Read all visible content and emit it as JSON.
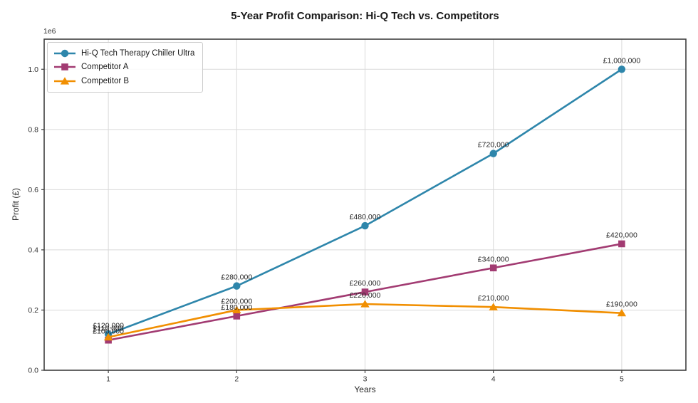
{
  "chart_data": {
    "type": "line",
    "title": "5-Year Profit Comparison: Hi-Q Tech vs. Competitors",
    "xlabel": "Years",
    "ylabel": "Profit (£)",
    "y_axis_multiplier_label": "1e6",
    "x": [
      1,
      2,
      3,
      4,
      5
    ],
    "x_tick_labels": [
      "1",
      "2",
      "3",
      "4",
      "5"
    ],
    "y_ticks": [
      0,
      200000,
      400000,
      600000,
      800000,
      1000000
    ],
    "y_tick_labels": [
      "0.0",
      "0.2",
      "0.4",
      "0.6",
      "0.8",
      "1.0"
    ],
    "xlim": [
      0.5,
      5.5
    ],
    "ylim": [
      0,
      1100000
    ],
    "grid": true,
    "legend_position": "upper left",
    "colors": {
      "grid": "#d9d9d9",
      "spine": "#3f3f3f",
      "tick_text": "#333333",
      "annotation_text": "#262626",
      "background": "#ffffff"
    },
    "series": [
      {
        "name": "Hi-Q Tech Therapy Chiller Ultra",
        "color": "#2E86AB",
        "marker": "circle",
        "values": [
          120000,
          280000,
          480000,
          720000,
          1000000
        ],
        "point_labels": [
          "£120,000",
          "£280,000",
          "£480,000",
          "£720,000",
          "£1,000,000"
        ]
      },
      {
        "name": "Competitor A",
        "color": "#A23B72",
        "marker": "square",
        "values": [
          100000,
          180000,
          260000,
          340000,
          420000
        ],
        "point_labels": [
          "£100,000",
          "£180,000",
          "£260,000",
          "£340,000",
          "£420,000"
        ]
      },
      {
        "name": "Competitor B",
        "color": "#F18F01",
        "marker": "triangle",
        "values": [
          110000,
          200000,
          220000,
          210000,
          190000
        ],
        "point_labels": [
          "£110,000",
          "£200,000",
          "£220,000",
          "£210,000",
          "£190,000"
        ]
      }
    ]
  }
}
